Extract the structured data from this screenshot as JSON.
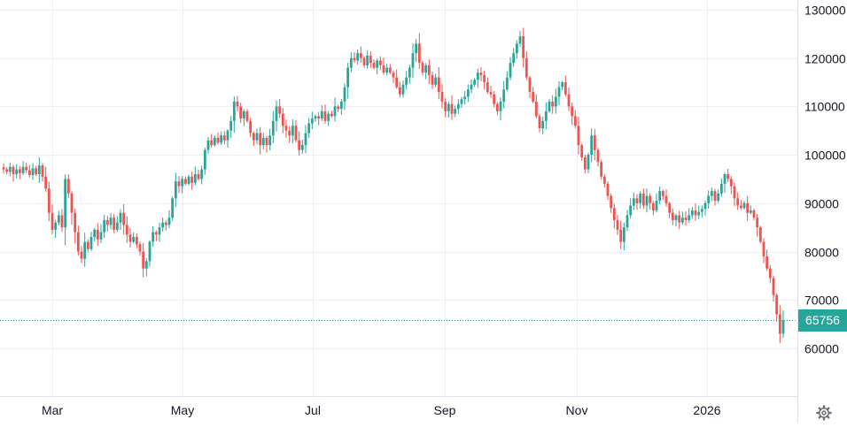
{
  "colors": {
    "up": "#26a69a",
    "down": "#ef5350",
    "grid": "#eef0f3",
    "axis_text": "#131722",
    "last_price_bg": "#26a69a",
    "last_price_line": "#26a69a"
  },
  "icons": {
    "settings": "gear-icon"
  },
  "last_price": {
    "label": "65756",
    "value": 65756
  },
  "chart_data": {
    "type": "candlestick",
    "x_tick_labels": [
      "Mar",
      "May",
      "Jul",
      "Sep",
      "Nov",
      "2026"
    ],
    "y_tick_labels": [
      "130000",
      "120000",
      "110000",
      "100000",
      "90000",
      "80000",
      "70000",
      "60000"
    ],
    "y_ticks": [
      130000,
      120000,
      110000,
      100000,
      90000,
      80000,
      70000,
      60000
    ],
    "ylim": [
      50000,
      132000
    ],
    "grid": true,
    "price_line": 65756,
    "closes": [
      97000,
      96500,
      97500,
      96000,
      97000,
      96200,
      97500,
      96800,
      95800,
      97200,
      96000,
      97800,
      95500,
      93000,
      88000,
      84500,
      86000,
      87500,
      85000,
      95000,
      92000,
      88000,
      84000,
      80000,
      78500,
      82000,
      80500,
      83000,
      84500,
      82500,
      84000,
      86500,
      85500,
      87000,
      84500,
      86000,
      88000,
      85500,
      83500,
      82000,
      83000,
      81500,
      80000,
      76500,
      78000,
      82000,
      84000,
      83500,
      85000,
      86000,
      85500,
      87000,
      91000,
      94500,
      93500,
      95000,
      94000,
      95500,
      94200,
      96000,
      95000,
      97000,
      101000,
      103000,
      102000,
      103500,
      102500,
      104000,
      103000,
      105000,
      107000,
      111000,
      110000,
      107500,
      109000,
      107000,
      104500,
      103000,
      104500,
      102000,
      103500,
      102000,
      104000,
      107000,
      110000,
      108500,
      106000,
      105000,
      104000,
      106000,
      103000,
      101000,
      102000,
      104500,
      106500,
      107500,
      108000,
      107500,
      109000,
      107000,
      108500,
      108000,
      110000,
      109500,
      111000,
      114000,
      118000,
      120000,
      119500,
      121000,
      120000,
      118500,
      120500,
      119000,
      118000,
      119500,
      118500,
      117000,
      118000,
      117000,
      116000,
      114000,
      112500,
      114500,
      116000,
      118000,
      121000,
      123000,
      119000,
      117000,
      118500,
      116500,
      114500,
      116000,
      113000,
      111000,
      109000,
      110500,
      108500,
      109500,
      110500,
      111500,
      112000,
      113500,
      114500,
      115500,
      117000,
      116500,
      115000,
      113000,
      112500,
      110500,
      109000,
      111000,
      113500,
      116000,
      119000,
      121000,
      123000,
      124500,
      120000,
      116000,
      113000,
      111000,
      108000,
      105500,
      107000,
      109000,
      111000,
      110000,
      112000,
      114000,
      115000,
      112500,
      110000,
      108000,
      106000,
      102000,
      99500,
      97000,
      100000,
      104000,
      101000,
      98500,
      95500,
      94000,
      91500,
      89000,
      86500,
      84500,
      82000,
      85000,
      87500,
      89500,
      91000,
      90000,
      92000,
      89500,
      91500,
      90000,
      88500,
      90500,
      92500,
      91500,
      90000,
      88000,
      86500,
      87500,
      86000,
      87000,
      86500,
      87500,
      88500,
      87500,
      88200,
      88800,
      90000,
      91500,
      92500,
      90500,
      92000,
      94000,
      96000,
      95000,
      93500,
      91000,
      89500,
      89000,
      90000,
      88000,
      88500,
      87000,
      85000,
      82000,
      79000,
      76500,
      74500,
      71000,
      67000,
      63000,
      65756
    ]
  }
}
